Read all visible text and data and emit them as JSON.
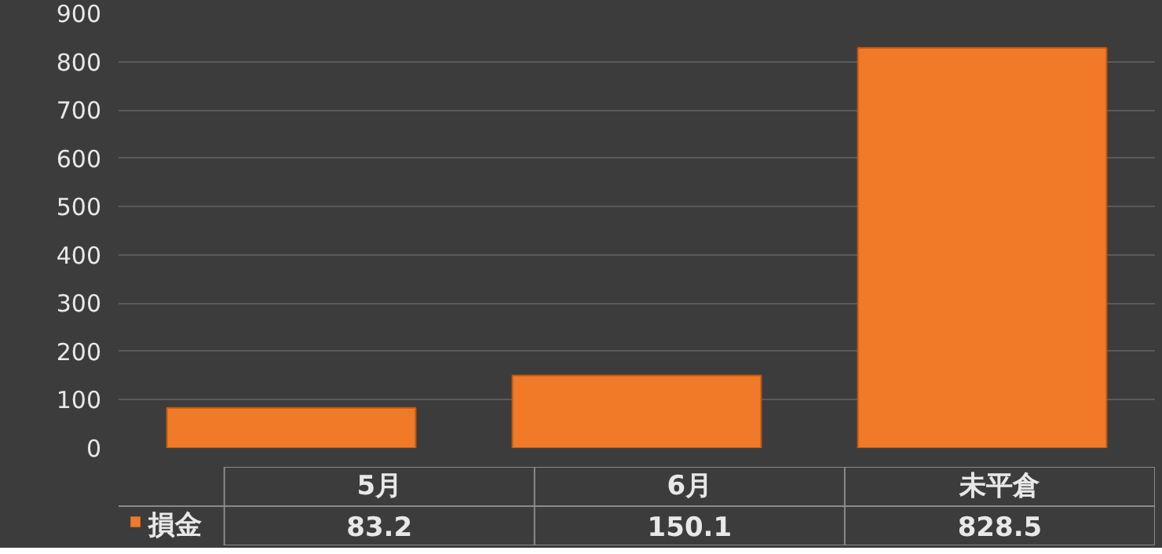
{
  "chart_data": {
    "type": "bar",
    "categories": [
      "5月",
      "6月",
      "未平倉"
    ],
    "series": [
      {
        "name": "損金",
        "color": "#f07a28",
        "values": [
          83.2,
          150.1,
          828.5
        ]
      }
    ],
    "ylim": [
      0,
      900
    ],
    "yticks": [
      0,
      100,
      200,
      300,
      400,
      500,
      600,
      700,
      800,
      900
    ],
    "grid": "y",
    "legend": "bottom",
    "data_labels": true
  }
}
